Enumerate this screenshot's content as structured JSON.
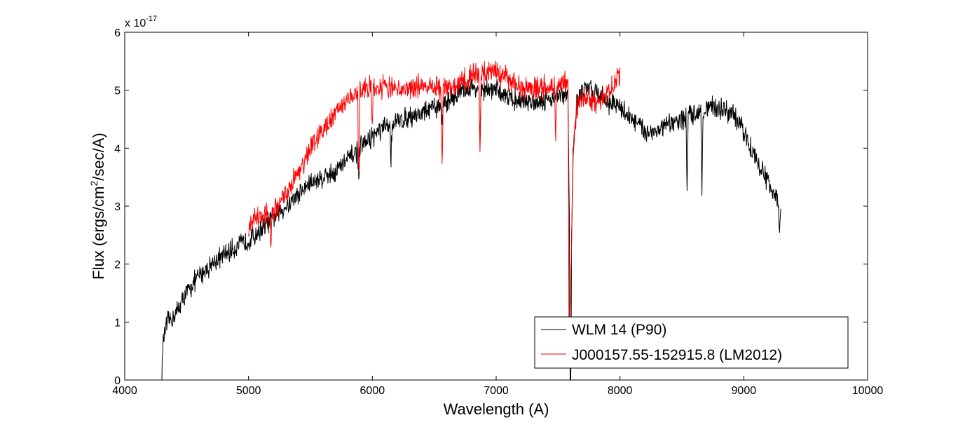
{
  "chart_data": {
    "type": "line",
    "title": "",
    "xlabel": "Wavelength (A)",
    "ylabel_parts": {
      "before": "Flux (ergs/cm",
      "sup": "2",
      "after": "/sec/A)"
    },
    "y_multiplier": {
      "base": "x 10",
      "exponent": "-17"
    },
    "xlim": [
      4000,
      10000
    ],
    "ylim": [
      0,
      6
    ],
    "xticks": [
      4000,
      5000,
      6000,
      7000,
      8000,
      9000,
      10000
    ],
    "yticks": [
      0,
      1,
      2,
      3,
      4,
      5,
      6
    ],
    "grid": false,
    "legend_position": "bottom-right",
    "series": [
      {
        "name": "WLM 14 (P90)",
        "color": "#000000",
        "noise": 0.22,
        "x": [
          4300,
          4305,
          4320,
          4350,
          4400,
          4450,
          4500,
          4600,
          4700,
          4800,
          4900,
          5000,
          5100,
          5200,
          5300,
          5400,
          5500,
          5600,
          5700,
          5800,
          5900,
          6000,
          6100,
          6200,
          6300,
          6400,
          6500,
          6600,
          6700,
          6800,
          6900,
          7000,
          7100,
          7200,
          7300,
          7400,
          7500,
          7580,
          7600,
          7620,
          7650,
          7700,
          7800,
          7900,
          8000,
          8100,
          8200,
          8300,
          8400,
          8500,
          8600,
          8700,
          8800,
          8900,
          9000,
          9100,
          9200,
          9250,
          9300
        ],
        "y": [
          0.05,
          0.5,
          0.8,
          1.0,
          1.1,
          1.3,
          1.5,
          1.8,
          2.0,
          2.15,
          2.3,
          2.4,
          2.6,
          2.8,
          3.0,
          3.2,
          3.4,
          3.5,
          3.6,
          3.8,
          4.0,
          4.2,
          4.35,
          4.45,
          4.55,
          4.6,
          4.7,
          4.8,
          4.95,
          5.05,
          5.0,
          5.0,
          4.9,
          4.8,
          4.8,
          4.85,
          4.9,
          4.9,
          1.3,
          3.8,
          4.8,
          5.0,
          5.0,
          4.8,
          4.7,
          4.5,
          4.3,
          4.3,
          4.4,
          4.5,
          4.6,
          4.7,
          4.7,
          4.6,
          4.3,
          3.8,
          3.4,
          3.2,
          2.9
        ],
        "features": [
          [
            5890,
            0.5
          ],
          [
            6150,
            0.6
          ],
          [
            6563,
            0.4
          ],
          [
            6870,
            1.0
          ],
          [
            7600,
            3.2
          ],
          [
            8542,
            1.3
          ],
          [
            8662,
            1.4
          ],
          [
            9290,
            0.5
          ]
        ]
      },
      {
        "name": "J000157.55-152915.8 (LM2012)",
        "color": "#ff0000",
        "noise": 0.24,
        "x": [
          5000,
          5050,
          5100,
          5200,
          5300,
          5400,
          5500,
          5600,
          5700,
          5800,
          5900,
          6000,
          6100,
          6200,
          6300,
          6400,
          6500,
          6600,
          6700,
          6800,
          6900,
          7000,
          7100,
          7200,
          7300,
          7400,
          7500,
          7580,
          7600,
          7620,
          7650,
          7700,
          7800,
          7900,
          8000
        ],
        "y": [
          2.6,
          2.8,
          2.8,
          2.9,
          3.2,
          3.6,
          4.0,
          4.35,
          4.6,
          4.85,
          5.0,
          5.05,
          5.05,
          5.0,
          5.05,
          5.1,
          5.0,
          5.05,
          5.1,
          5.25,
          5.3,
          5.3,
          5.2,
          5.05,
          5.05,
          5.05,
          5.1,
          5.1,
          1.3,
          3.8,
          4.7,
          4.9,
          4.8,
          4.9,
          5.3
        ],
        "features": [
          [
            5180,
            0.7
          ],
          [
            5890,
            1.6
          ],
          [
            6000,
            0.8
          ],
          [
            6563,
            1.4
          ],
          [
            6870,
            1.6
          ],
          [
            7590,
            3.3
          ],
          [
            7480,
            1.0
          ]
        ]
      }
    ]
  }
}
